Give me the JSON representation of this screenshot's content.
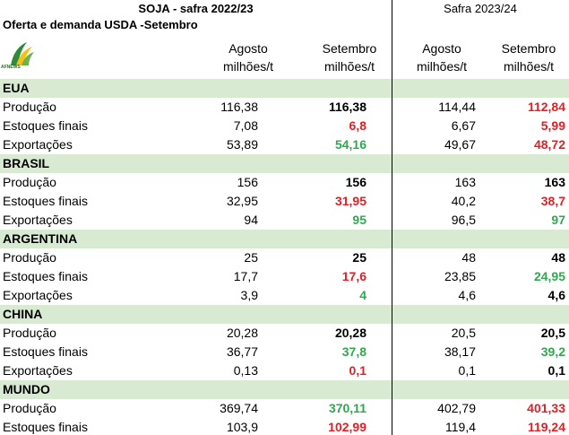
{
  "header": {
    "title_left": "SOJA - safra 2022/23",
    "title_right": "Safra 2023/24",
    "subtitle": "Oferta e demanda USDA -Setembro",
    "logo_text": "AFNEWS",
    "col1": [
      "Agosto",
      "milhões/t"
    ],
    "col2": [
      "Setembro",
      "milhões/t"
    ],
    "col3": [
      "Agosto",
      "milhões/t"
    ],
    "col4": [
      "Setembro",
      "milhões/t"
    ]
  },
  "colors": {
    "section_bg": "#d9ead3",
    "red": "#e31e24",
    "green": "#2fa84f"
  },
  "sections": [
    {
      "name": "EUA",
      "rows": [
        {
          "label": "Produção",
          "v1": "116,38",
          "v2": "116,38",
          "v2c": "black",
          "v3": "114,44",
          "v4": "112,84",
          "v4c": "red"
        },
        {
          "label": "Estoques finais",
          "v1": "7,08",
          "v2": "6,8",
          "v2c": "red",
          "v3": "6,67",
          "v4": "5,99",
          "v4c": "red"
        },
        {
          "label": "Exportações",
          "v1": "53,89",
          "v2": "54,16",
          "v2c": "green",
          "v3": "49,67",
          "v4": "48,72",
          "v4c": "red"
        }
      ]
    },
    {
      "name": "BRASIL",
      "rows": [
        {
          "label": "Produção",
          "v1": "156",
          "v2": "156",
          "v2c": "black",
          "v3": "163",
          "v4": "163",
          "v4c": "black"
        },
        {
          "label": "Estoques finais",
          "v1": "32,95",
          "v2": "31,95",
          "v2c": "red",
          "v3": "40,2",
          "v4": "38,7",
          "v4c": "red"
        },
        {
          "label": "Exportações",
          "v1": "94",
          "v2": "95",
          "v2c": "green",
          "v3": "96,5",
          "v4": "97",
          "v4c": "green"
        }
      ]
    },
    {
      "name": "ARGENTINA",
      "rows": [
        {
          "label": "Produção",
          "v1": "25",
          "v2": "25",
          "v2c": "black",
          "v3": "48",
          "v4": "48",
          "v4c": "black"
        },
        {
          "label": "Estoques finais",
          "v1": "17,7",
          "v2": "17,6",
          "v2c": "red",
          "v3": "23,85",
          "v4": "24,95",
          "v4c": "green"
        },
        {
          "label": "Exportações",
          "v1": "3,9",
          "v2": "4",
          "v2c": "green",
          "v3": "4,6",
          "v4": "4,6",
          "v4c": "black"
        }
      ]
    },
    {
      "name": "CHINA",
      "rows": [
        {
          "label": "Produção",
          "v1": "20,28",
          "v2": "20,28",
          "v2c": "black",
          "v3": "20,5",
          "v4": "20,5",
          "v4c": "black"
        },
        {
          "label": "Estoques finais",
          "v1": "36,77",
          "v2": "37,8",
          "v2c": "green",
          "v3": "38,17",
          "v4": "39,2",
          "v4c": "green"
        },
        {
          "label": "Exportações",
          "v1": "0,13",
          "v2": "0,1",
          "v2c": "red",
          "v3": "0,1",
          "v4": "0,1",
          "v4c": "black"
        }
      ]
    },
    {
      "name": "MUNDO",
      "rows": [
        {
          "label": "Produção",
          "v1": "369,74",
          "v2": "370,11",
          "v2c": "green",
          "v3": "402,79",
          "v4": "401,33",
          "v4c": "red"
        },
        {
          "label": "Estoques finais",
          "v1": "103,9",
          "v2": "102,99",
          "v2c": "red",
          "v3": "119,4",
          "v4": "119,24",
          "v4c": "red"
        }
      ]
    }
  ]
}
